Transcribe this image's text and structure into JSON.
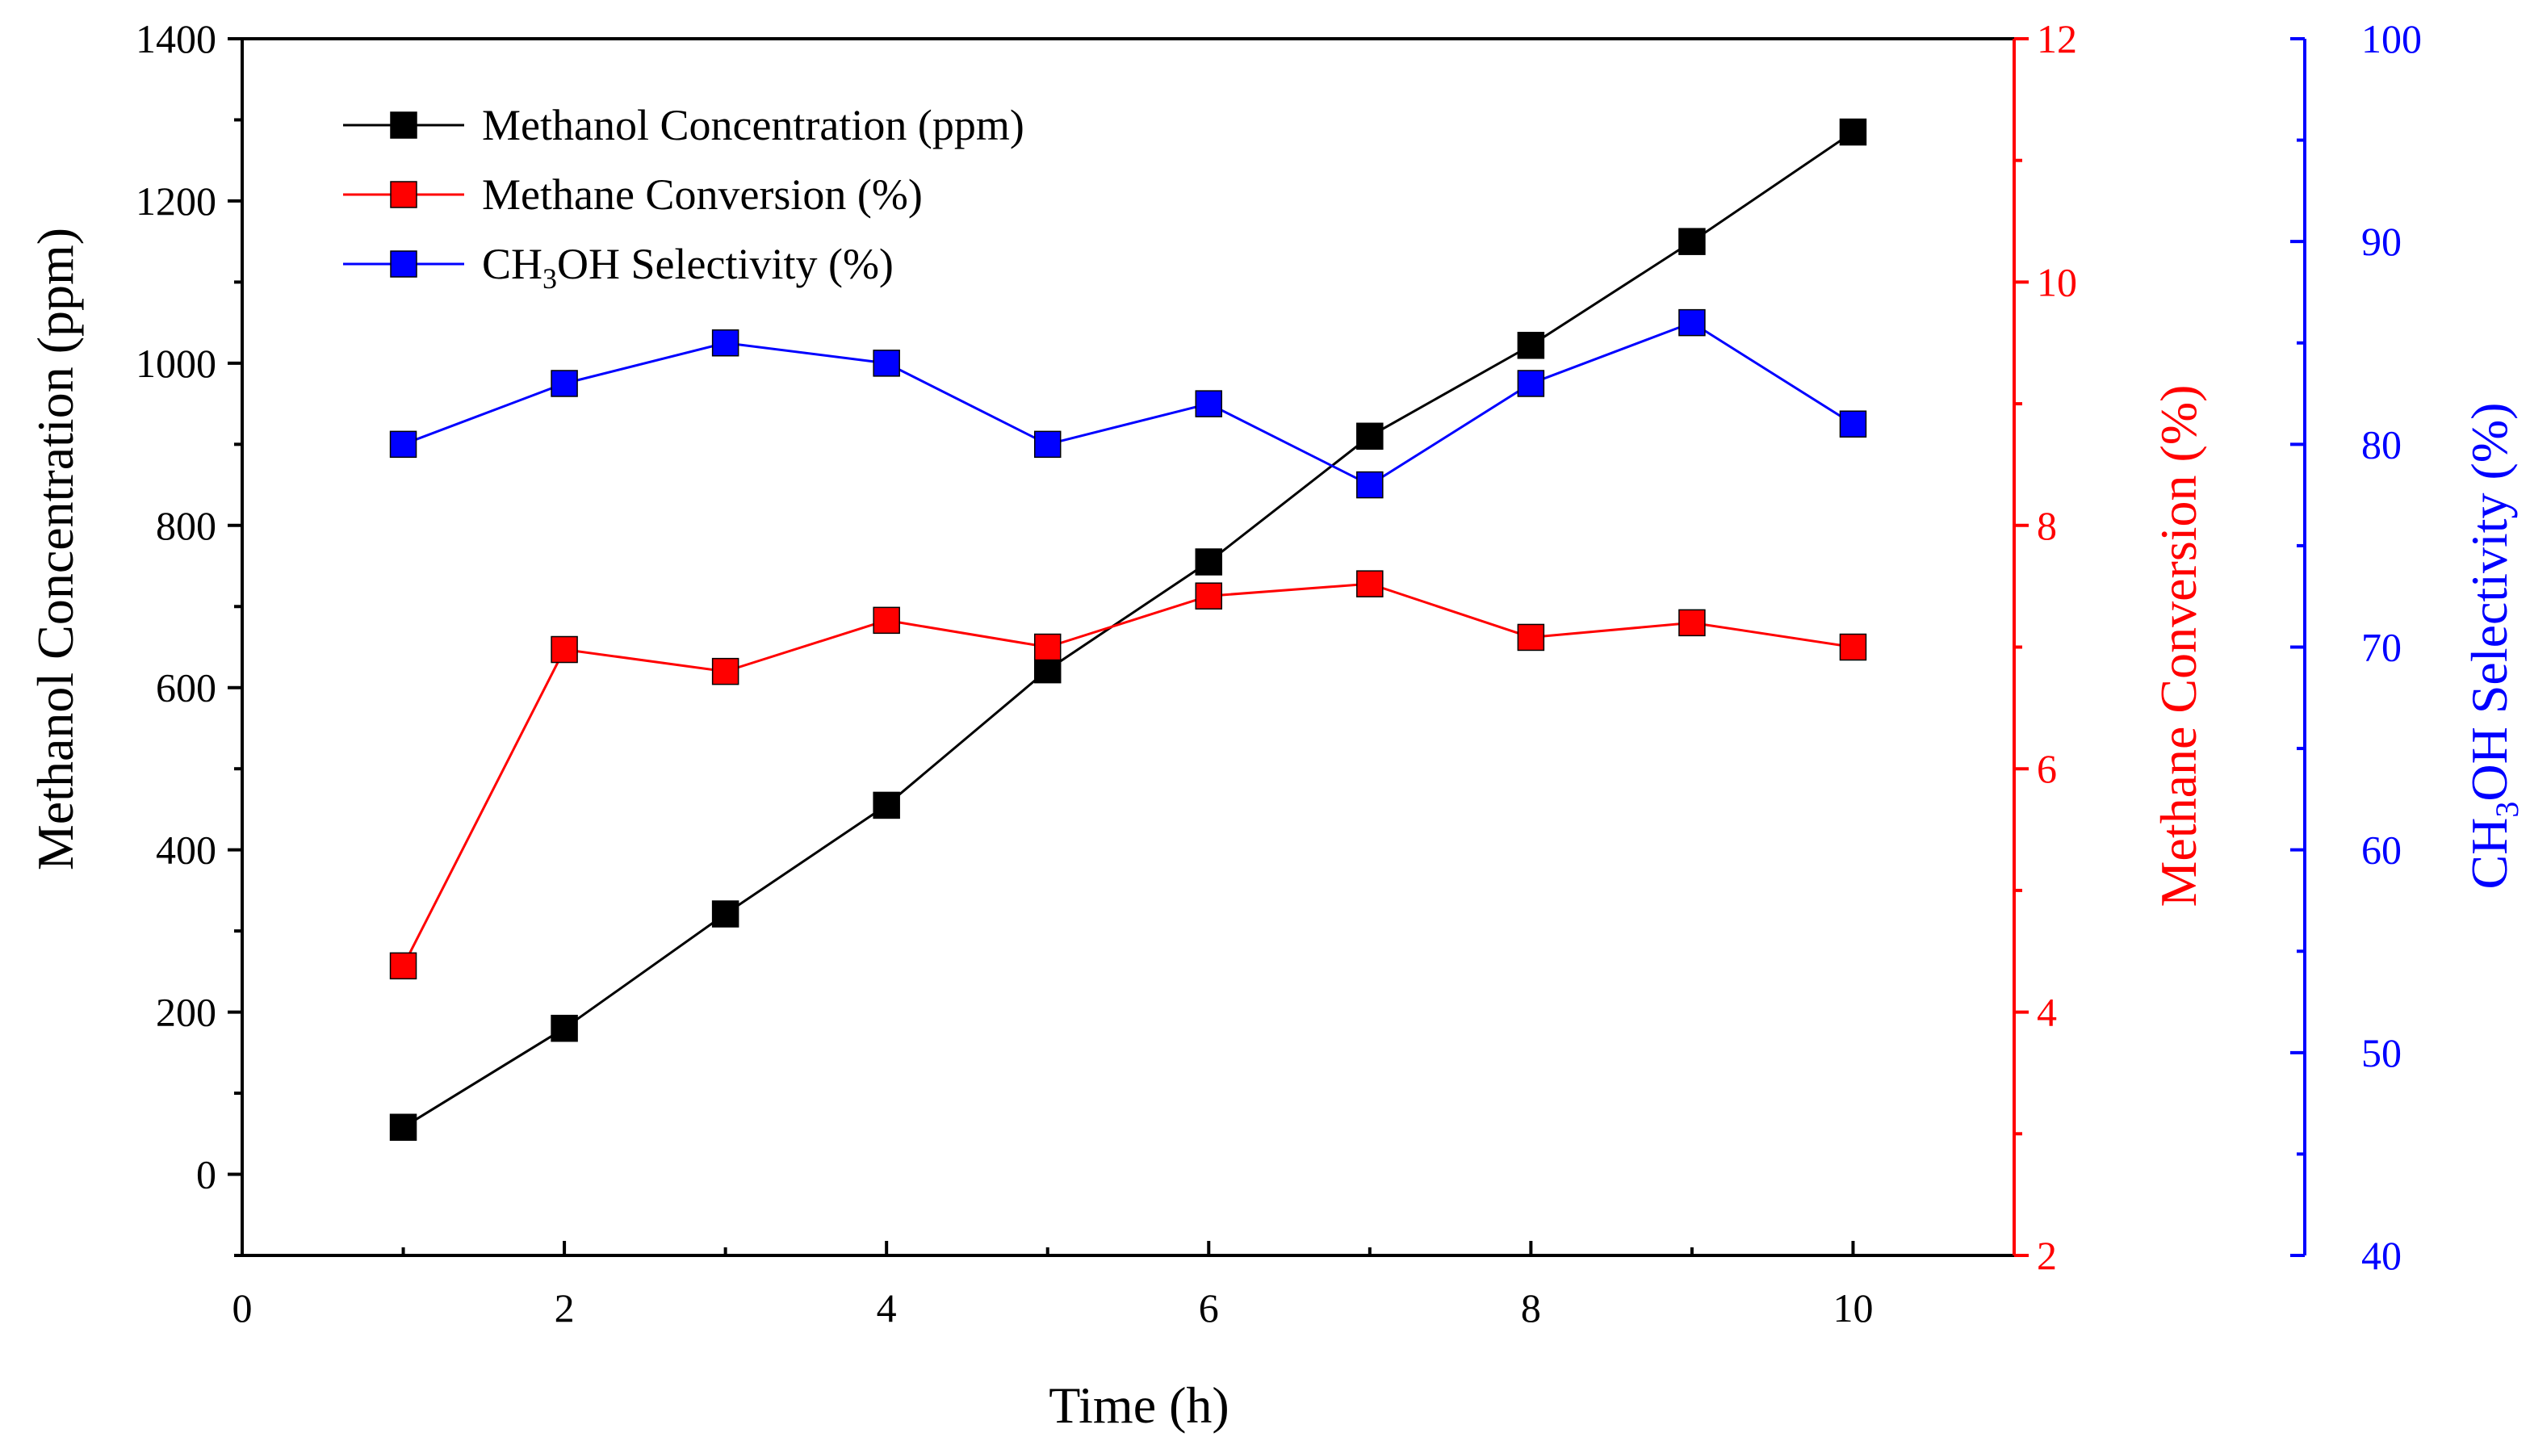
{
  "chart_data": {
    "type": "line",
    "x": [
      1,
      2,
      3,
      4,
      5,
      6,
      7,
      8,
      9,
      10
    ],
    "xlabel": "Time (h)",
    "xlim": [
      0,
      11
    ],
    "xticks": [
      "0",
      "2",
      "4",
      "6",
      "8",
      "10"
    ],
    "series": [
      {
        "name": "Methanol Concentration (ppm)",
        "color": "#000000",
        "axis": "left",
        "values": [
          58,
          180,
          321,
          455,
          622,
          755,
          910,
          1022,
          1150,
          1285
        ]
      },
      {
        "name": "Methane Conversion (%)",
        "color": "#ff0000",
        "axis": "right",
        "values": [
          4.38,
          6.98,
          6.8,
          7.22,
          7.0,
          7.42,
          7.52,
          7.08,
          7.2,
          7.0
        ]
      },
      {
        "name_parts": [
          "CH",
          "3",
          "OH  Selectivity (%)"
        ],
        "color": "#0000ff",
        "axis": "far-right",
        "values": [
          80.0,
          83.0,
          85.0,
          84.0,
          80.0,
          82.0,
          78.0,
          83.0,
          86.0,
          81.0
        ]
      }
    ],
    "axes": {
      "left": {
        "label": "Methanol Concentration (ppm)",
        "ylim": [
          -100,
          1400
        ],
        "ticks": [
          "0",
          "200",
          "400",
          "600",
          "800",
          "1000",
          "1200",
          "1400"
        ],
        "color": "#000000"
      },
      "right": {
        "label": "Methane Conversion (%)",
        "ylim": [
          2,
          12
        ],
        "ticks": [
          "2",
          "4",
          "6",
          "8",
          "10",
          "12"
        ],
        "color": "#ff0000"
      },
      "far_right": {
        "label_parts": [
          "CH",
          "3",
          "OH Selectivity (%)"
        ],
        "ylim": [
          40,
          100
        ],
        "ticks": [
          "40",
          "50",
          "60",
          "70",
          "80",
          "90",
          "100"
        ],
        "color": "#0000ff"
      }
    },
    "legend_position": "top-left",
    "grid": false
  }
}
